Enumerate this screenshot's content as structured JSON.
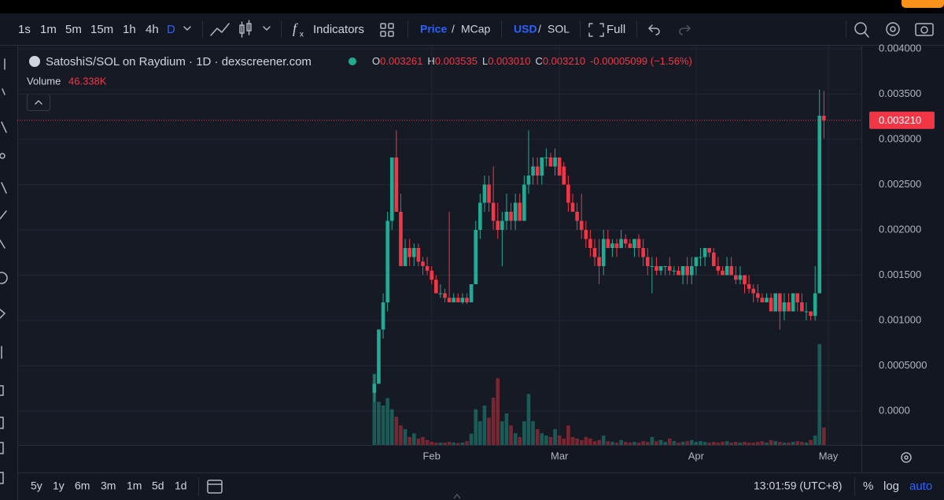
{
  "toolbar": {
    "intervals": [
      "1s",
      "1m",
      "5m",
      "15m",
      "1h",
      "4h",
      "D"
    ],
    "active_interval": 6,
    "indicators": "Indicators",
    "price": "Price",
    "price_sep": "/",
    "mcap": "MCap",
    "usd": "USD",
    "usd_sep": "/",
    "sol": "SOL",
    "full": "Full"
  },
  "chart_data": {
    "type": "candlestick",
    "title": "SatoshiS/SOL on Raydium · 1D · dexscreener.com",
    "readout": [
      {
        "key": "O",
        "value": "0.003261"
      },
      {
        "key": "H",
        "value": "0.003535"
      },
      {
        "key": "L",
        "value": "0.003010"
      },
      {
        "key": "C",
        "value": "0.003210"
      }
    ],
    "change": "-0.00005099 (−1.56%)",
    "up_color": "#22ab94",
    "down_color": "#f23645",
    "grid": true,
    "x": [
      0,
      1,
      2,
      3,
      4,
      5,
      6,
      7,
      8,
      9,
      10,
      11,
      12,
      13,
      14,
      15,
      16,
      17,
      18,
      19,
      20,
      21,
      22,
      23,
      24,
      25,
      26,
      27,
      28,
      29,
      30,
      31,
      32,
      33,
      34,
      35,
      36,
      37,
      38,
      39,
      40,
      41,
      42,
      43,
      44,
      45,
      46,
      47,
      48,
      49,
      50,
      51,
      52,
      53,
      54,
      55,
      56,
      57,
      58,
      59,
      60,
      61,
      62,
      63,
      64,
      65,
      66,
      67,
      68,
      69,
      70,
      71,
      72,
      73,
      74,
      75,
      76,
      77,
      78,
      79,
      80,
      81,
      82,
      83,
      84,
      85,
      86,
      87,
      88,
      89,
      90,
      91,
      92,
      93,
      94,
      95,
      96,
      97,
      98,
      99,
      100,
      101,
      102
    ],
    "open": [
      0.0002,
      0.0003,
      0.0009,
      0.0012,
      0.0021,
      0.0028,
      0.0022,
      0.0016,
      0.0018,
      0.0017,
      0.0018,
      0.00165,
      0.0016,
      0.00155,
      0.00145,
      0.0013,
      0.0013,
      0.00125,
      0.0012,
      0.00125,
      0.0012,
      0.00125,
      0.0012,
      0.0014,
      0.002,
      0.0023,
      0.0025,
      0.0023,
      0.0021,
      0.002,
      0.0021,
      0.0022,
      0.0021,
      0.0023,
      0.0021,
      0.0025,
      0.0026,
      0.0027,
      0.0026,
      0.0028,
      0.0028,
      0.0027,
      0.0028,
      0.0027,
      0.0025,
      0.0023,
      0.0022,
      0.0021,
      0.002,
      0.0019,
      0.0018,
      0.0017,
      0.0016,
      0.0019,
      0.0018,
      0.00185,
      0.0018,
      0.0019,
      0.00185,
      0.0018,
      0.0019,
      0.0018,
      0.0017,
      0.0016,
      0.0016,
      0.00155,
      0.0016,
      0.0016,
      0.00155,
      0.00155,
      0.0015,
      0.0016,
      0.0015,
      0.0016,
      0.0017,
      0.0017,
      0.0018,
      0.00175,
      0.0016,
      0.00155,
      0.0015,
      0.0016,
      0.0015,
      0.00145,
      0.0015,
      0.0014,
      0.00135,
      0.0013,
      0.00125,
      0.0012,
      0.00125,
      0.0011,
      0.0013,
      0.0011,
      0.0012,
      0.0011,
      0.0013,
      0.0012,
      0.0011,
      0.0011,
      0.00105,
      0.0013,
      0.003261
    ],
    "high": [
      0.0004,
      0.0009,
      0.0013,
      0.0022,
      0.0028,
      0.0031,
      0.0024,
      0.0019,
      0.0019,
      0.00185,
      0.00185,
      0.0017,
      0.0017,
      0.0016,
      0.0015,
      0.0014,
      0.00135,
      0.0022,
      0.0013,
      0.0013,
      0.0013,
      0.0013,
      0.0014,
      0.0021,
      0.0024,
      0.0026,
      0.0026,
      0.0027,
      0.0023,
      0.0022,
      0.0024,
      0.0023,
      0.0024,
      0.0024,
      0.0026,
      0.0031,
      0.0028,
      0.0028,
      0.0028,
      0.0029,
      0.00285,
      0.0029,
      0.0028,
      0.00275,
      0.0026,
      0.0024,
      0.0023,
      0.0024,
      0.0021,
      0.002,
      0.0019,
      0.0019,
      0.002,
      0.002,
      0.0019,
      0.0019,
      0.002,
      0.00195,
      0.0019,
      0.0019,
      0.00195,
      0.0019,
      0.0018,
      0.0017,
      0.0017,
      0.0016,
      0.0016,
      0.0017,
      0.0016,
      0.0016,
      0.0016,
      0.0017,
      0.0017,
      0.0017,
      0.0018,
      0.0018,
      0.0018,
      0.0018,
      0.0017,
      0.0016,
      0.0017,
      0.0017,
      0.0016,
      0.0016,
      0.0015,
      0.0015,
      0.0014,
      0.0014,
      0.0013,
      0.0013,
      0.0013,
      0.0013,
      0.0013,
      0.0013,
      0.0013,
      0.0013,
      0.0013,
      0.0013,
      0.0012,
      0.0011,
      0.0016,
      0.00355,
      0.003535
    ],
    "low": [
      0.0001,
      0.0003,
      0.0008,
      0.0011,
      0.002,
      0.0022,
      0.0016,
      0.0016,
      0.0016,
      0.0016,
      0.0016,
      0.0015,
      0.0015,
      0.0014,
      0.0013,
      0.00125,
      0.0012,
      0.0012,
      0.0012,
      0.0012,
      0.00118,
      0.00118,
      0.0012,
      0.0014,
      0.0019,
      0.0022,
      0.0022,
      0.002,
      0.0019,
      0.0016,
      0.002,
      0.002,
      0.002,
      0.0021,
      0.0021,
      0.0024,
      0.0025,
      0.0025,
      0.0025,
      0.0027,
      0.0027,
      0.0026,
      0.0026,
      0.0025,
      0.0022,
      0.0022,
      0.002,
      0.0019,
      0.0018,
      0.0017,
      0.0016,
      0.0014,
      0.0015,
      0.0018,
      0.0017,
      0.0017,
      0.0018,
      0.0018,
      0.0018,
      0.0017,
      0.0017,
      0.0016,
      0.0015,
      0.0013,
      0.0015,
      0.0015,
      0.0015,
      0.0015,
      0.0015,
      0.0015,
      0.0014,
      0.0014,
      0.0014,
      0.0015,
      0.0016,
      0.0016,
      0.0017,
      0.0016,
      0.0015,
      0.0015,
      0.0015,
      0.0015,
      0.0014,
      0.0014,
      0.0013,
      0.0013,
      0.0012,
      0.0012,
      0.0012,
      0.0012,
      0.0011,
      0.0011,
      0.0009,
      0.001,
      0.0011,
      0.0011,
      0.0011,
      0.0011,
      0.001,
      0.001,
      0.001,
      0.0013,
      0.00301
    ],
    "close": [
      0.0003,
      0.0009,
      0.0012,
      0.0021,
      0.0028,
      0.0022,
      0.0016,
      0.0018,
      0.0017,
      0.0018,
      0.00165,
      0.0016,
      0.00155,
      0.00145,
      0.0013,
      0.0013,
      0.00125,
      0.0012,
      0.00125,
      0.0012,
      0.00125,
      0.0012,
      0.0014,
      0.002,
      0.0023,
      0.0025,
      0.0023,
      0.0021,
      0.002,
      0.0021,
      0.0022,
      0.0021,
      0.0023,
      0.0021,
      0.0025,
      0.0026,
      0.0027,
      0.0026,
      0.0028,
      0.0028,
      0.0027,
      0.0028,
      0.0026,
      0.0025,
      0.0023,
      0.0022,
      0.0021,
      0.002,
      0.0019,
      0.0018,
      0.0017,
      0.0016,
      0.0019,
      0.0018,
      0.00185,
      0.0018,
      0.0019,
      0.00185,
      0.0018,
      0.0019,
      0.0018,
      0.0017,
      0.0016,
      0.0016,
      0.00155,
      0.0016,
      0.0016,
      0.00155,
      0.00155,
      0.0015,
      0.0016,
      0.0015,
      0.0016,
      0.0017,
      0.0017,
      0.0018,
      0.00175,
      0.0016,
      0.00155,
      0.0015,
      0.0016,
      0.0015,
      0.00145,
      0.0015,
      0.0014,
      0.00135,
      0.0013,
      0.00125,
      0.0012,
      0.00125,
      0.0011,
      0.0013,
      0.0011,
      0.0012,
      0.0011,
      0.0013,
      0.0012,
      0.0011,
      0.0011,
      0.00105,
      0.0013,
      0.003261,
      0.00321
    ],
    "volume": {
      "name": "Volume",
      "readout": {
        "value": 46.338,
        "label": "46.338K"
      },
      "values": [
        190,
        115,
        105,
        125,
        95,
        75,
        52,
        42,
        21,
        31,
        17,
        21,
        13,
        8,
        6,
        6,
        6,
        8,
        6,
        5,
        6,
        10,
        30,
        95,
        63,
        105,
        73,
        126,
        178,
        63,
        84,
        52,
        31,
        21,
        63,
        136,
        63,
        42,
        31,
        25,
        21,
        42,
        25,
        17,
        52,
        21,
        17,
        13,
        21,
        17,
        10,
        13,
        25,
        10,
        8,
        6,
        13,
        8,
        6,
        8,
        6,
        10,
        8,
        21,
        10,
        13,
        8,
        17,
        10,
        6,
        8,
        10,
        13,
        8,
        10,
        8,
        6,
        8,
        6,
        8,
        10,
        6,
        8,
        6,
        8,
        6,
        6,
        8,
        10,
        6,
        13,
        10,
        8,
        6,
        6,
        8,
        10,
        8,
        6,
        13,
        25,
        269,
        46.338
      ]
    },
    "last_price": {
      "value": 0.00321,
      "label": "0.003210"
    },
    "xlim": [
      -81,
      110.5
    ],
    "xticks": [
      {
        "value": 13,
        "label": "Feb"
      },
      {
        "value": 42,
        "label": "Mar"
      },
      {
        "value": 73,
        "label": "Apr"
      },
      {
        "value": 103,
        "label": "May"
      }
    ],
    "ylim": [
      -0.000374,
      0.004017
    ],
    "yticks": [
      {
        "value": 0,
        "label": "0.0000"
      },
      {
        "value": 0.0005,
        "label": "0.0005000"
      },
      {
        "value": 0.001,
        "label": "0.001000"
      },
      {
        "value": 0.0015,
        "label": "0.001500"
      },
      {
        "value": 0.002,
        "label": "0.002000"
      },
      {
        "value": 0.0025,
        "label": "0.002500"
      },
      {
        "value": 0.003,
        "label": "0.003000"
      },
      {
        "value": 0.0035,
        "label": "0.003500"
      },
      {
        "value": 0.004,
        "label": "0.004000"
      }
    ]
  },
  "bottom_bar": {
    "ranges": [
      "5y",
      "1y",
      "6m",
      "3m",
      "1m",
      "5d",
      "1d"
    ],
    "clock": "13:01:59 (UTC+8)",
    "percent": "%",
    "log": "log",
    "auto": "auto"
  }
}
